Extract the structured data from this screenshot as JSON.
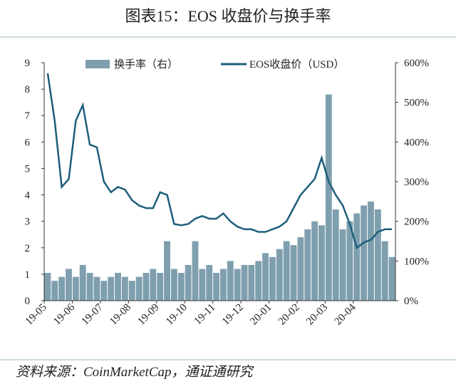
{
  "chart_data": {
    "type": "bar_line",
    "title": "图表15：EOS 收盘价与换手率",
    "source": "资料来源：CoinMarketCap，通证通研究",
    "categories": [
      "19-05",
      null,
      null,
      null,
      "19-06",
      null,
      null,
      null,
      "19-07",
      null,
      null,
      null,
      "19-08",
      null,
      null,
      null,
      "19-09",
      null,
      null,
      null,
      "19-10",
      null,
      null,
      null,
      "19-11",
      null,
      null,
      null,
      "19-12",
      null,
      null,
      null,
      "20-01",
      null,
      null,
      null,
      "20-02",
      null,
      null,
      null,
      "20-03",
      null,
      null,
      null,
      "20-04",
      null,
      null,
      null,
      null,
      null
    ],
    "series": [
      {
        "name": "换手率（右）",
        "color": "#7f9fae",
        "axis": "y2",
        "values": [
          70,
          50,
          60,
          80,
          60,
          90,
          70,
          60,
          50,
          60,
          70,
          60,
          50,
          60,
          70,
          80,
          70,
          150,
          80,
          70,
          90,
          150,
          80,
          90,
          70,
          80,
          100,
          80,
          90,
          90,
          100,
          120,
          110,
          130,
          150,
          140,
          160,
          180,
          200,
          190,
          520,
          230,
          180,
          200,
          220,
          240,
          250,
          230,
          150,
          110
        ]
      },
      {
        "name": "EOS收盘价（USD）",
        "color": "#1d5e7b",
        "values": [
          8.6,
          6.8,
          4.3,
          4.6,
          6.8,
          7.4,
          5.9,
          5.8,
          4.5,
          4.1,
          4.3,
          4.2,
          3.8,
          3.6,
          3.5,
          3.5,
          4.1,
          4.0,
          2.9,
          2.85,
          2.9,
          3.1,
          3.2,
          3.1,
          3.1,
          3.3,
          3.0,
          2.8,
          2.7,
          2.7,
          2.6,
          2.6,
          2.7,
          2.8,
          3.0,
          3.5,
          4.0,
          4.3,
          4.6,
          5.4,
          4.5,
          4.0,
          3.6,
          2.9,
          2.0,
          2.2,
          2.3,
          2.6,
          2.7,
          2.7
        ]
      }
    ],
    "ylim": [
      0,
      9
    ],
    "yticks": [
      0,
      1,
      2,
      3,
      4,
      5,
      6,
      7,
      8,
      9
    ],
    "y2lim": [
      0,
      600
    ],
    "y2ticks": [
      {
        "value": 0,
        "label": "0%"
      },
      {
        "value": 100,
        "label": "100%"
      },
      {
        "value": 200,
        "label": "200%"
      },
      {
        "value": 300,
        "label": "300%"
      },
      {
        "value": 400,
        "label": "400%"
      },
      {
        "value": 500,
        "label": "500%"
      },
      {
        "value": 600,
        "label": "600%"
      }
    ]
  }
}
